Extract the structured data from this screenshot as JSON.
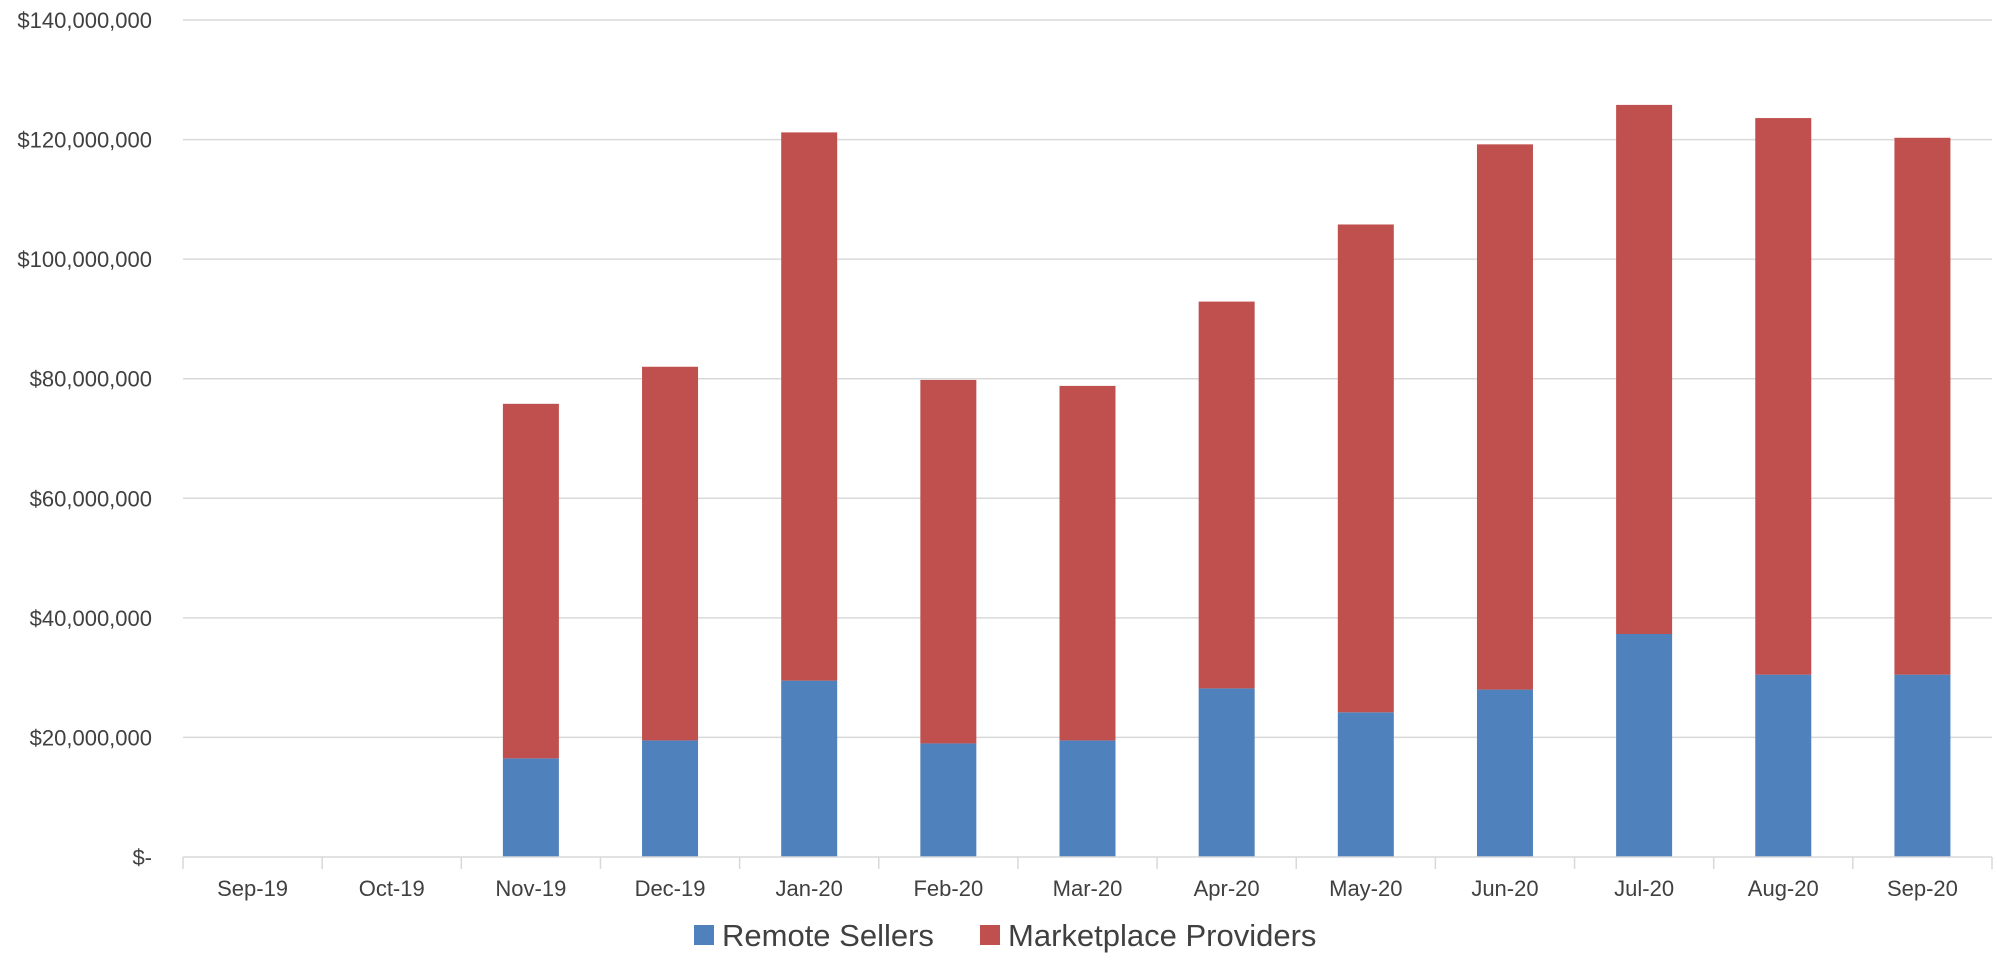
{
  "chart_data": {
    "type": "bar",
    "stacked": true,
    "categories": [
      "Sep-19",
      "Oct-19",
      "Nov-19",
      "Dec-19",
      "Jan-20",
      "Feb-20",
      "Mar-20",
      "Apr-20",
      "May-20",
      "Jun-20",
      "Jul-20",
      "Aug-20",
      "Sep-20"
    ],
    "series": [
      {
        "name": "Remote Sellers",
        "color": "#4f81bd",
        "values": [
          0,
          0,
          16500000,
          19500000,
          29500000,
          19000000,
          19500000,
          28200000,
          24200000,
          28000000,
          37300000,
          30500000,
          30500000
        ]
      },
      {
        "name": "Marketplace Providers",
        "color": "#c0504d",
        "values": [
          0,
          0,
          59300000,
          62500000,
          91700000,
          60800000,
          59300000,
          64700000,
          81600000,
          91200000,
          88500000,
          93100000,
          89800000
        ]
      }
    ],
    "ylim": [
      0,
      140000000
    ],
    "yticks": [
      0,
      20000000,
      40000000,
      60000000,
      80000000,
      100000000,
      120000000,
      140000000
    ],
    "ytick_labels": [
      "$-",
      "$20,000,000",
      "$40,000,000",
      "$60,000,000",
      "$80,000,000",
      "$100,000,000",
      "$120,000,000",
      "$140,000,000"
    ],
    "grid": true,
    "legend_position": "bottom",
    "title": "",
    "xlabel": "",
    "ylabel": ""
  }
}
